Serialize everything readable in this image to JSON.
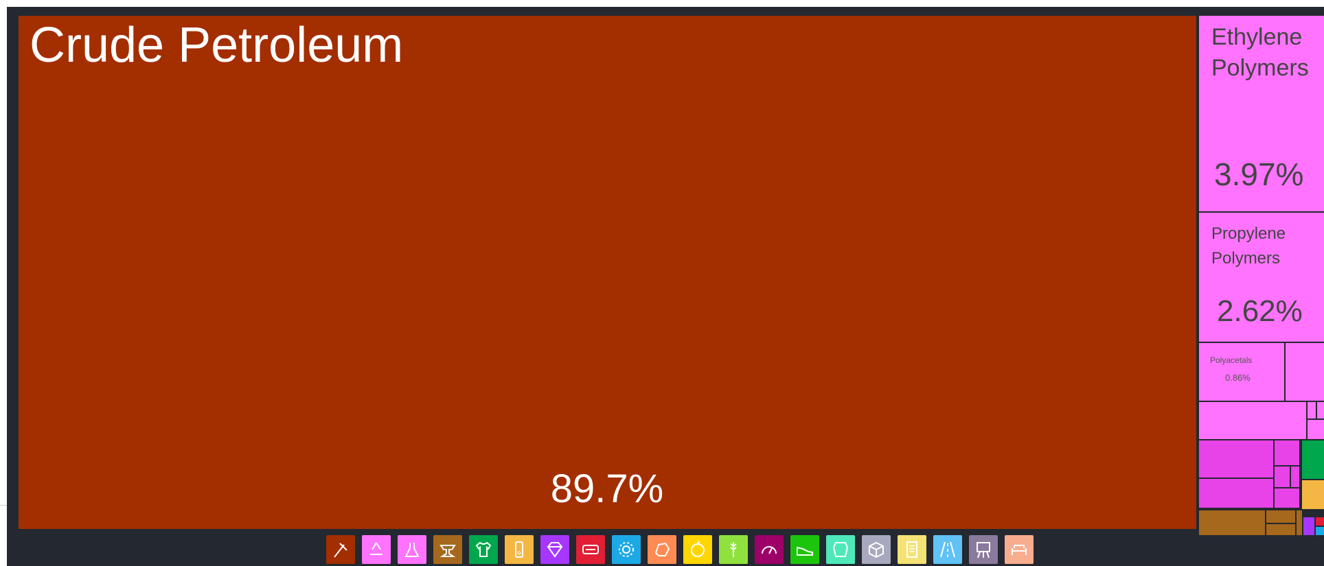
{
  "chart_data": {
    "type": "treemap",
    "items": [
      {
        "label": "Crude Petroleum",
        "value": "89.7%",
        "color": "#A32E00"
      },
      {
        "label": "Ethylene Polymers",
        "value": "3.97%",
        "color": "#FF73FF"
      },
      {
        "label": "Propylene Polymers",
        "value": "2.62%",
        "color": "#FF73FF"
      },
      {
        "label": "Polyacetals",
        "value": "0.86%",
        "color": "#FF73FF"
      }
    ]
  },
  "category_icons": [
    {
      "name": "minerals-icon",
      "color": "#A32E00"
    },
    {
      "name": "recycling-icon",
      "color": "#FF73FF"
    },
    {
      "name": "flask-icon",
      "color": "#FF73FF"
    },
    {
      "name": "anvil-icon",
      "color": "#A6681D"
    },
    {
      "name": "shirt-icon",
      "color": "#00A74C"
    },
    {
      "name": "bottle-icon",
      "color": "#F5B744"
    },
    {
      "name": "gem-icon",
      "color": "#A737FF"
    },
    {
      "name": "keyboard-icon",
      "color": "#E11E34"
    },
    {
      "name": "gear-icon",
      "color": "#1DA9E6"
    },
    {
      "name": "stone-icon",
      "color": "#FF8A54"
    },
    {
      "name": "fruit-icon",
      "color": "#FFD600"
    },
    {
      "name": "wheat-icon",
      "color": "#8FE23E"
    },
    {
      "name": "gauge-icon",
      "color": "#9D0069"
    },
    {
      "name": "shoe-icon",
      "color": "#1CC50C"
    },
    {
      "name": "hide-icon",
      "color": "#4FE9B9"
    },
    {
      "name": "box-icon",
      "color": "#A8A8BE"
    },
    {
      "name": "paper-icon",
      "color": "#F4E274"
    },
    {
      "name": "road-icon",
      "color": "#60C2F5"
    },
    {
      "name": "easel-icon",
      "color": "#8A7A9B"
    },
    {
      "name": "sofa-icon",
      "color": "#F7AD8E"
    }
  ]
}
